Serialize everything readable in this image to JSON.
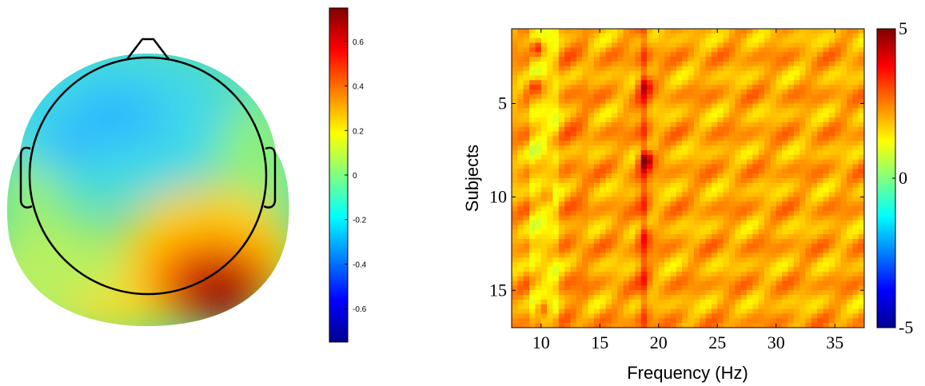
{
  "chart_data": [
    {
      "type": "heatmap",
      "subtype": "scalp-topography",
      "colormap": "jet",
      "colorbar": {
        "range": [
          -0.75,
          0.75
        ],
        "ticks": [
          -0.6,
          -0.4,
          -0.2,
          0,
          0.2,
          0.4,
          0.6
        ],
        "tick_labels": [
          "-0.6",
          "-0.4",
          "-0.2",
          "0",
          "0.2",
          "0.4",
          "0.6"
        ]
      },
      "hotspots": [
        {
          "region": "right-occipital",
          "value": 0.75
        },
        {
          "region": "left-frontal",
          "value": -0.35
        },
        {
          "region": "left-temporal",
          "value": -0.3
        }
      ]
    },
    {
      "type": "heatmap",
      "colormap": "jet",
      "xlabel": "Frequency (Hz)",
      "ylabel": "Subjects",
      "xlim": [
        7.5,
        37.5
      ],
      "ylim": [
        1,
        17
      ],
      "xticks": [
        10,
        15,
        20,
        25,
        30,
        35
      ],
      "yticks": [
        5,
        10,
        15
      ],
      "colorbar": {
        "range": [
          -5,
          5
        ],
        "ticks": [
          -5,
          0,
          5
        ],
        "tick_labels": [
          "-5",
          "0",
          "5"
        ]
      },
      "peaks": [
        {
          "subject": 2,
          "freq": 9.6,
          "value": 4.2
        },
        {
          "subject": 4,
          "freq": 9.4,
          "value": 4.0
        },
        {
          "subject": 4,
          "freq": 18.8,
          "value": 3.5
        },
        {
          "subject": 7,
          "freq": 11.0,
          "value": 2.6
        },
        {
          "subject": 8,
          "freq": 18.9,
          "value": 4.6
        },
        {
          "subject": 10,
          "freq": 10.6,
          "value": 3.2
        },
        {
          "subject": 12,
          "freq": 18.7,
          "value": 3.0
        },
        {
          "subject": 16,
          "freq": 10.2,
          "value": 3.6
        },
        {
          "subject": 17,
          "freq": 9.6,
          "value": 3.4
        }
      ]
    }
  ]
}
